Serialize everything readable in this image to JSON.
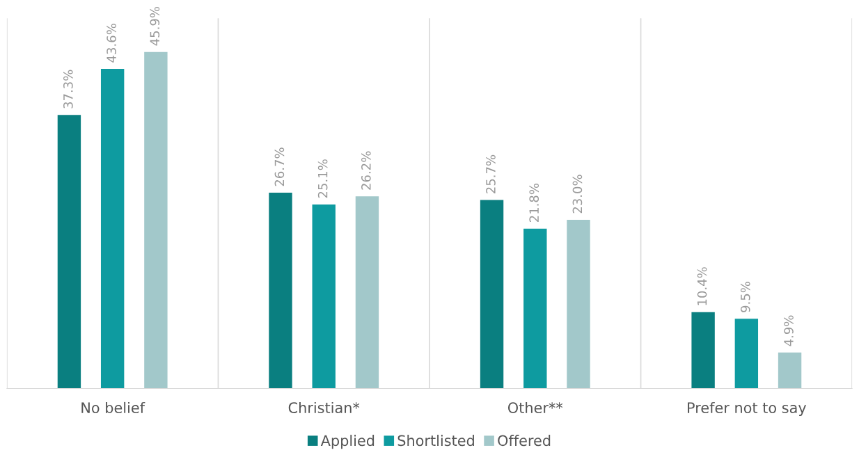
{
  "chart_data": {
    "type": "bar",
    "categories": [
      "No belief",
      "Christian*",
      "Other**",
      "Prefer not to say"
    ],
    "series": [
      {
        "name": "Applied",
        "color": "#0a7f80",
        "values": [
          37.3,
          26.7,
          25.7,
          10.4
        ],
        "value_labels": [
          "37.3%",
          "26.7%",
          "25.7%",
          "10.4%"
        ]
      },
      {
        "name": "Shortlisted",
        "color": "#0e9ba0",
        "values": [
          43.6,
          25.1,
          21.8,
          9.5
        ],
        "value_labels": [
          "43.6%",
          "25.1%",
          "21.8%",
          "9.5%"
        ]
      },
      {
        "name": "Offered",
        "color": "#a2c8ca",
        "values": [
          45.9,
          26.2,
          23.0,
          4.9
        ],
        "value_labels": [
          "45.9%",
          "26.2%",
          "23.0%",
          "4.9%"
        ]
      }
    ],
    "grid": "x",
    "legend": "bottom",
    "tick_labels": "x"
  }
}
